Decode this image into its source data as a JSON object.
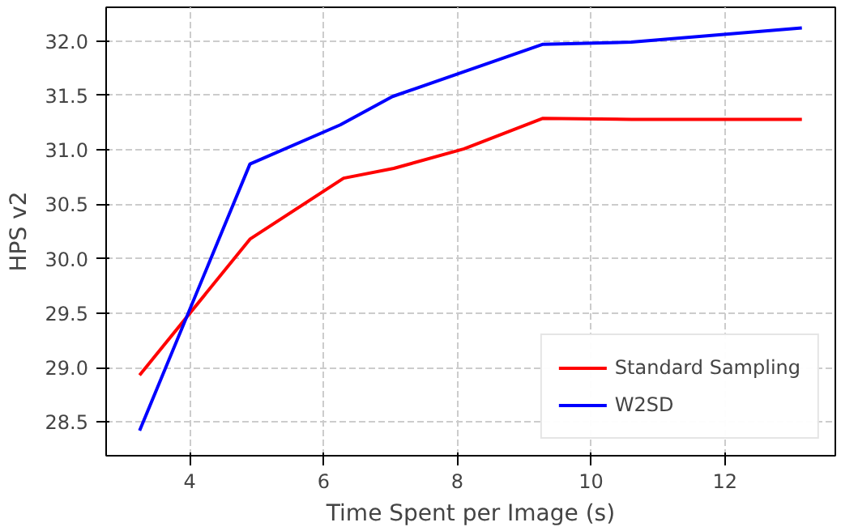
{
  "chart_data": {
    "type": "line",
    "xlabel": "Time Spent per Image (s)",
    "ylabel": "HPS v2",
    "xlim": [
      2.75,
      13.65
    ],
    "xticks": [
      4,
      6,
      8,
      10,
      12
    ],
    "ylim": [
      28.19,
      32.31
    ],
    "yticks": [
      {
        "value": 28.5,
        "label": "28.5"
      },
      {
        "value": 29.0,
        "label": "29.0"
      },
      {
        "value": 29.5,
        "label": "29.5"
      },
      {
        "value": 30.0,
        "label": "30.0"
      },
      {
        "value": 30.5,
        "label": "30.5"
      },
      {
        "value": 31.0,
        "label": "31.0"
      },
      {
        "value": 31.5,
        "label": "31.5"
      },
      {
        "value": 32.0,
        "label": "32.0"
      }
    ],
    "grid": true,
    "legend": "bottom right",
    "line_style": "solid",
    "series": [
      {
        "name": "Standard Sampling",
        "color": "#ff0000",
        "x": [
          3.25,
          4.9,
          6.3,
          7.05,
          8.1,
          9.28,
          10.6,
          13.15
        ],
        "values": [
          28.93,
          30.18,
          30.74,
          30.83,
          31.01,
          31.29,
          31.28,
          31.28
        ]
      },
      {
        "name": "W2SD",
        "color": "#0000ff",
        "x": [
          3.25,
          4.9,
          6.25,
          7.03,
          9.28,
          10.6,
          13.15
        ],
        "values": [
          28.42,
          30.87,
          31.23,
          31.49,
          31.97,
          31.99,
          32.12
        ]
      }
    ]
  }
}
